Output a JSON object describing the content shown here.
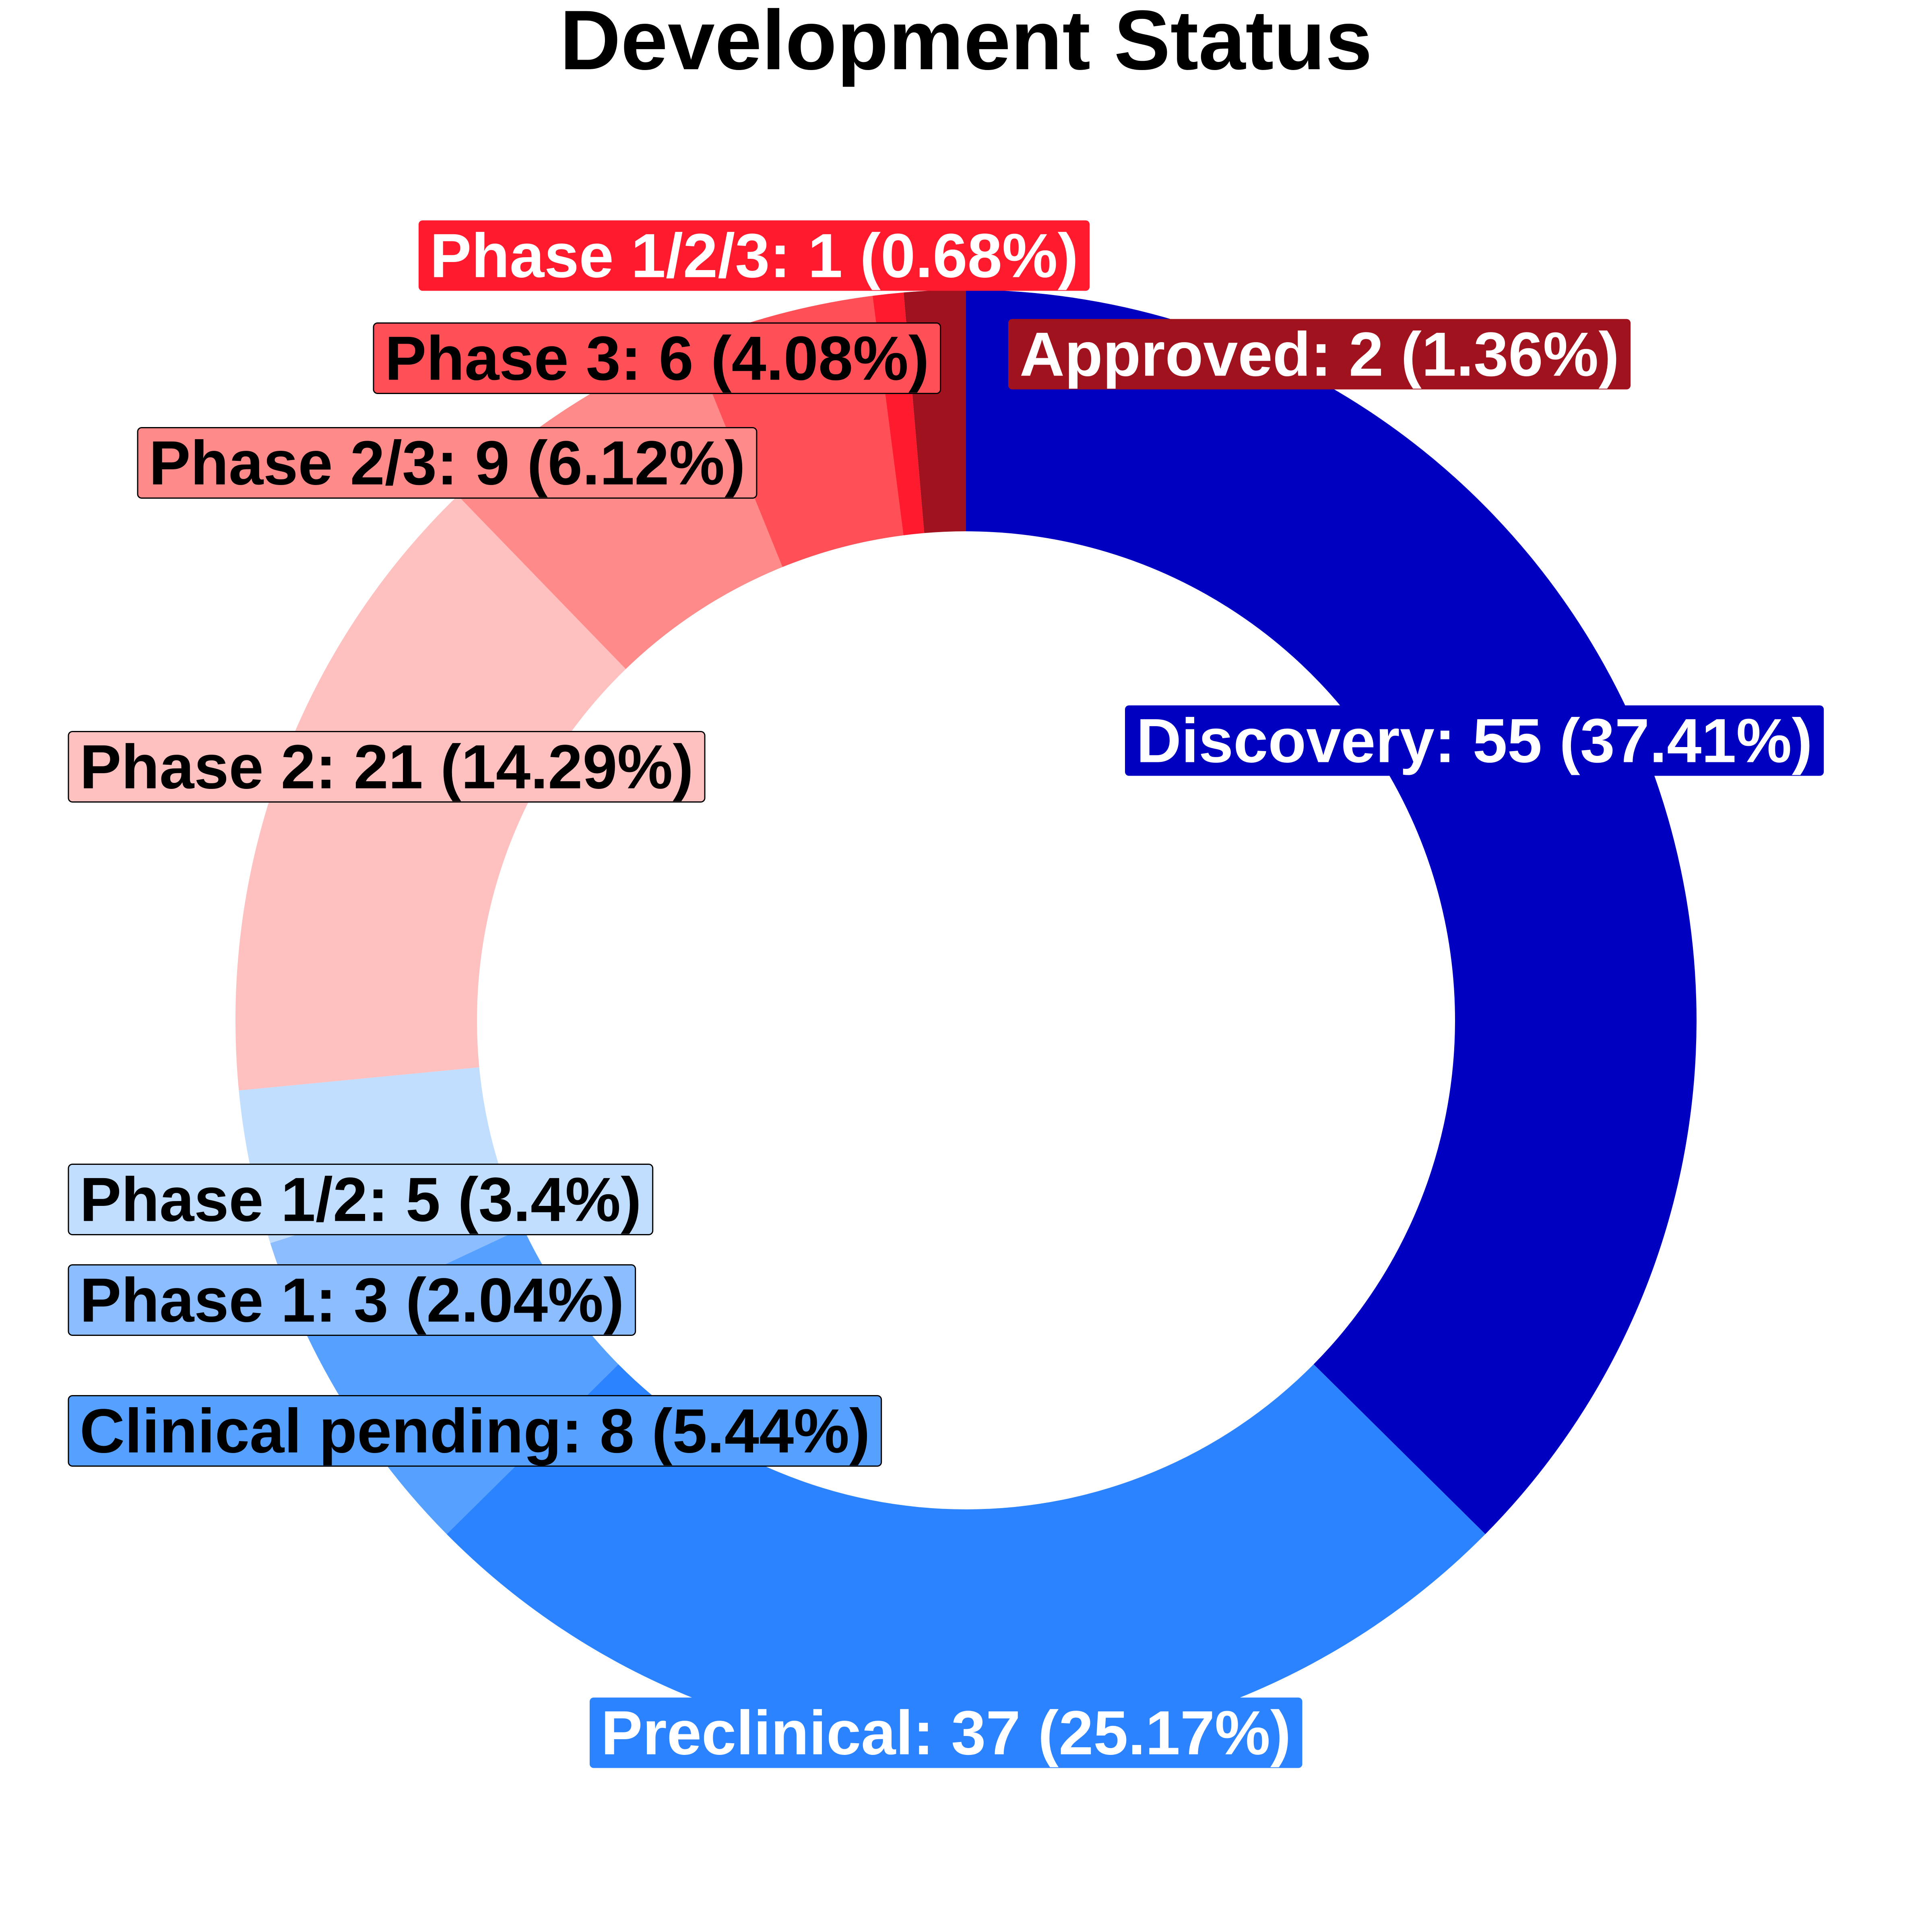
{
  "chart_data": {
    "type": "pie",
    "title": "Development Status",
    "donut": true,
    "legend": "none",
    "slices": [
      {
        "label": "Discovery",
        "value": 55,
        "percent": "37.41%",
        "color": "#0000C0",
        "text_color": "#FFFFFF",
        "label_text": "Discovery: 55 (37.41%)"
      },
      {
        "label": "Preclinical",
        "value": 37,
        "percent": "25.17%",
        "color": "#2C83FF",
        "text_color": "#FFFFFF",
        "label_text": "Preclinical: 37 (25.17%)"
      },
      {
        "label": "Clinical pending",
        "value": 8,
        "percent": "5.44%",
        "color": "#56A0FF",
        "text_color": "#000000",
        "label_text": "Clinical pending: 8 (5.44%)"
      },
      {
        "label": "Phase 1",
        "value": 3,
        "percent": "2.04%",
        "color": "#8CBEFF",
        "text_color": "#000000",
        "label_text": "Phase 1: 3 (2.04%)"
      },
      {
        "label": "Phase 1/2",
        "value": 5,
        "percent": "3.4%",
        "color": "#C2DEFF",
        "text_color": "#000000",
        "label_text": "Phase 1/2: 5 (3.4%)"
      },
      {
        "label": "Phase 2",
        "value": 21,
        "percent": "14.29%",
        "color": "#FFC0C0",
        "text_color": "#000000",
        "label_text": "Phase 2: 21 (14.29%)"
      },
      {
        "label": "Phase 2/3",
        "value": 9,
        "percent": "6.12%",
        "color": "#FF8A8A",
        "text_color": "#000000",
        "label_text": "Phase 2/3: 9 (6.12%)"
      },
      {
        "label": "Phase 3",
        "value": 6,
        "percent": "4.08%",
        "color": "#FF5058",
        "text_color": "#000000",
        "label_text": "Phase 3: 6 (4.08%)"
      },
      {
        "label": "Phase 1/2/3",
        "value": 1,
        "percent": "0.68%",
        "color": "#FF1A2E",
        "text_color": "#FFFFFF",
        "label_text": "Phase 1/2/3: 1 (0.68%)"
      },
      {
        "label": "Approved",
        "value": 2,
        "percent": "1.36%",
        "color": "#A0121E",
        "text_color": "#FFFFFF",
        "label_text": "Approved: 2 (1.36%)"
      }
    ]
  }
}
